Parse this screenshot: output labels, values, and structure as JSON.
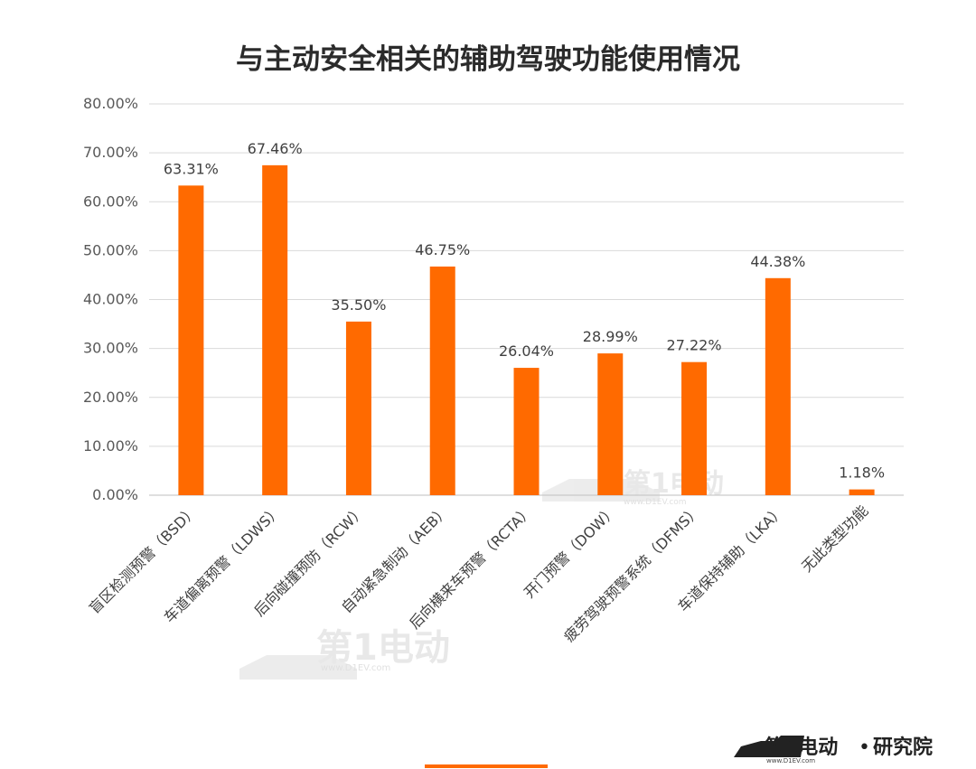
{
  "chart_data": {
    "type": "bar",
    "title": "与主动安全相关的辅助驾驶功能使用情况",
    "xlabel": "",
    "ylabel": "",
    "ylim": [
      0,
      80
    ],
    "yticks": [
      "0.00%",
      "10.00%",
      "20.00%",
      "30.00%",
      "40.00%",
      "50.00%",
      "60.00%",
      "70.00%",
      "80.00%"
    ],
    "categories": [
      "盲区检测预警（BSD）",
      "车道偏离预警（LDWS）",
      "后向碰撞预防（RCW）",
      "自动紧急制动（AEB）",
      "后向横来车预警（RCTA）",
      "开门预警（DOW）",
      "疲劳驾驶预警系统（DFMS）",
      "车道保持辅助（LKA）",
      "无此类型功能"
    ],
    "values": [
      63.31,
      67.46,
      35.5,
      46.75,
      26.04,
      28.99,
      27.22,
      44.38,
      1.18
    ],
    "labels": [
      "63.31%",
      "67.46%",
      "35.50%",
      "46.75%",
      "26.04%",
      "28.99%",
      "27.22%",
      "44.38%",
      "1.18%"
    ],
    "grid": true,
    "legend": "none",
    "bar_color": "#ff6a00"
  },
  "watermark": {
    "brand": "第1电动",
    "url": "www.D1EV.com"
  },
  "footer": {
    "brand": "第1电动",
    "separator": "•",
    "institute": "研究院",
    "url": "www.D1EV.com",
    "accent_color": "#ff6a00"
  }
}
